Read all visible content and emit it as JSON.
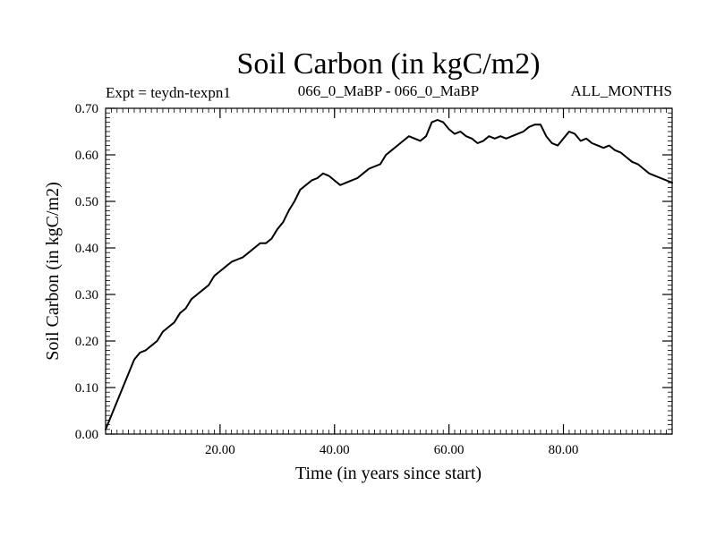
{
  "chart_data": {
    "type": "line",
    "title": "Soil Carbon (in kgC/m2)",
    "subtitle_left": "Expt = teydn-texpn1",
    "subtitle_center": "066_0_MaBP - 066_0_MaBP",
    "subtitle_right": "ALL_MONTHS",
    "xlabel": "Time (in years since start)",
    "ylabel": "Soil Carbon (in kgC/m2)",
    "xlim": [
      0,
      99
    ],
    "ylim": [
      0,
      0.7
    ],
    "x_ticks": [
      20,
      40,
      60,
      80
    ],
    "x_tick_labels": [
      "20.00",
      "40.00",
      "60.00",
      "80.00"
    ],
    "y_ticks": [
      0,
      0.1,
      0.2,
      0.3,
      0.4,
      0.5,
      0.6,
      0.7
    ],
    "y_tick_labels": [
      "0.00",
      "0.10",
      "0.20",
      "0.30",
      "0.40",
      "0.50",
      "0.60",
      "0.70"
    ],
    "grid": false,
    "series": [
      {
        "name": "Soil Carbon",
        "x": [
          0,
          1,
          2,
          3,
          4,
          5,
          6,
          7,
          8,
          9,
          10,
          11,
          12,
          13,
          14,
          15,
          16,
          17,
          18,
          19,
          20,
          21,
          22,
          23,
          24,
          25,
          26,
          27,
          28,
          29,
          30,
          31,
          32,
          33,
          34,
          35,
          36,
          37,
          38,
          39,
          40,
          41,
          42,
          43,
          44,
          45,
          46,
          47,
          48,
          49,
          50,
          51,
          52,
          53,
          54,
          55,
          56,
          57,
          58,
          59,
          60,
          61,
          62,
          63,
          64,
          65,
          66,
          67,
          68,
          69,
          70,
          71,
          72,
          73,
          74,
          75,
          76,
          77,
          78,
          79,
          80,
          81,
          82,
          83,
          84,
          85,
          86,
          87,
          88,
          89,
          90,
          91,
          92,
          93,
          94,
          95,
          96,
          97,
          98,
          99
        ],
        "values": [
          0.01,
          0.04,
          0.07,
          0.1,
          0.13,
          0.16,
          0.175,
          0.18,
          0.19,
          0.2,
          0.22,
          0.23,
          0.24,
          0.26,
          0.27,
          0.29,
          0.3,
          0.31,
          0.32,
          0.34,
          0.35,
          0.36,
          0.37,
          0.375,
          0.38,
          0.39,
          0.4,
          0.41,
          0.41,
          0.42,
          0.44,
          0.455,
          0.48,
          0.5,
          0.525,
          0.535,
          0.545,
          0.55,
          0.56,
          0.555,
          0.545,
          0.535,
          0.54,
          0.545,
          0.55,
          0.56,
          0.57,
          0.575,
          0.58,
          0.6,
          0.61,
          0.62,
          0.63,
          0.64,
          0.635,
          0.63,
          0.64,
          0.67,
          0.675,
          0.67,
          0.655,
          0.645,
          0.65,
          0.64,
          0.635,
          0.625,
          0.63,
          0.64,
          0.635,
          0.64,
          0.635,
          0.64,
          0.645,
          0.65,
          0.66,
          0.665,
          0.665,
          0.64,
          0.625,
          0.62,
          0.635,
          0.65,
          0.645,
          0.63,
          0.635,
          0.625,
          0.62,
          0.615,
          0.62,
          0.61,
          0.605,
          0.595,
          0.585,
          0.58,
          0.57,
          0.56,
          0.555,
          0.55,
          0.545,
          0.54
        ],
        "color": "#000000"
      }
    ]
  }
}
